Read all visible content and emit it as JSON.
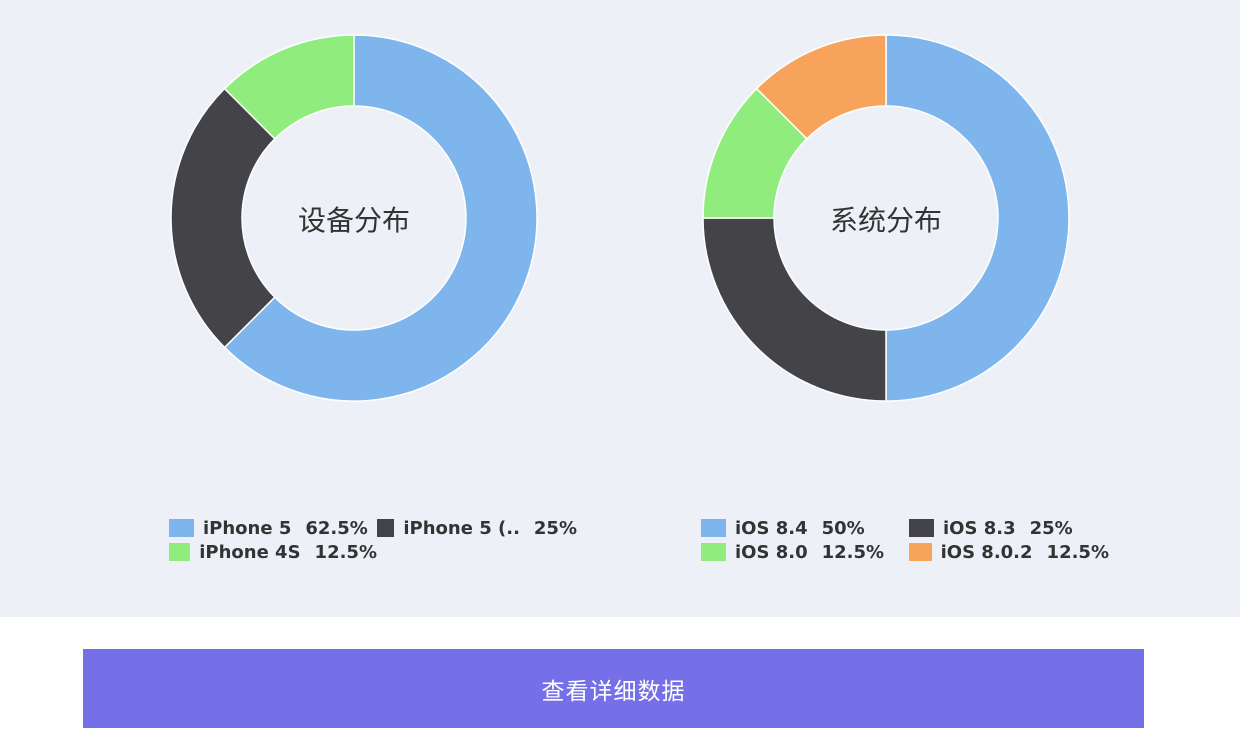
{
  "chart_data": [
    {
      "type": "pie",
      "title": "设备分布",
      "categories": [
        "iPhone 5",
        "iPhone 5 (..",
        "iPhone 4S"
      ],
      "values": [
        62.5,
        25,
        12.5
      ],
      "legend_texts": [
        "62.5%",
        "25%",
        "12.5%"
      ],
      "colors": [
        "#7db5ec",
        "#434348",
        "#90ed7d"
      ],
      "legend": "bottom"
    },
    {
      "type": "pie",
      "title": "系统分布",
      "categories": [
        "iOS 8.4",
        "iOS 8.3",
        "iOS 8.0",
        "iOS 8.0.2"
      ],
      "values": [
        50,
        25,
        12.5,
        12.5
      ],
      "legend_texts": [
        "50%",
        "25%",
        "12.5%",
        "12.5%"
      ],
      "colors": [
        "#7db5ec",
        "#434348",
        "#90ed7d",
        "#f7a35c"
      ],
      "legend": "bottom"
    }
  ],
  "button": {
    "label": "查看详细数据",
    "color": "#7670e8"
  }
}
